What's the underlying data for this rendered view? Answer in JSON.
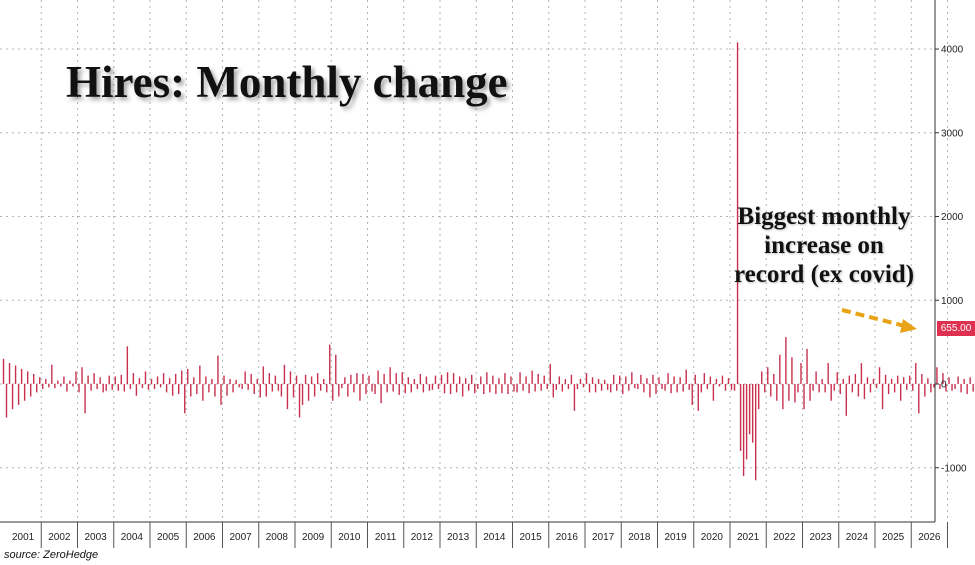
{
  "title": "Hires: Monthly change",
  "annotation": [
    "Biggest monthly",
    "increase on",
    "record (ex covid)"
  ],
  "source": "source: ZeroHedge",
  "last_value_label": "655.00",
  "colors": {
    "bars": "#c8304e",
    "grid": "#b4b4b4",
    "label_bg": "#e03050",
    "arrow": "#e8a317",
    "background": "#ffffff"
  },
  "chart_data": {
    "type": "bar",
    "title": "Hires: Monthly change",
    "xlabel": "",
    "ylabel": "",
    "ylim": [
      -1300,
      4300
    ],
    "yticks": [
      4000,
      3000,
      2000,
      1000,
      0,
      -1000
    ],
    "year_labels": [
      "2001",
      "2002",
      "2003",
      "2004",
      "2005",
      "2006",
      "2007",
      "2008",
      "2009",
      "2010",
      "2011",
      "2012",
      "2013",
      "2014",
      "2015",
      "2016",
      "2017",
      "2018",
      "2019",
      "2020",
      "2021",
      "2022",
      "2023",
      "2024",
      "2025",
      "2026"
    ],
    "grid": true,
    "last_value": 655,
    "series": [
      {
        "frequency": "monthly",
        "start": "2000-12",
        "end": "2026-01",
        "values": [
          300,
          -400,
          250,
          -300,
          220,
          -250,
          180,
          -200,
          150,
          -150,
          120,
          -100,
          80,
          -60,
          60,
          -40,
          230,
          -50,
          40,
          -30,
          90,
          -90,
          40,
          -30,
          150,
          -100,
          200,
          -350,
          100,
          -80,
          130,
          -60,
          80,
          -100,
          -80,
          100,
          -70,
          90,
          -80,
          110,
          -90,
          450,
          -60,
          130,
          -140,
          70,
          -50,
          150,
          -70,
          60,
          -60,
          90,
          -40,
          130,
          -100,
          70,
          -140,
          120,
          -120,
          160,
          -350,
          180,
          -150,
          80,
          -120,
          220,
          -200,
          90,
          -100,
          60,
          -150,
          340,
          -250,
          100,
          -140,
          60,
          -100,
          50,
          -40,
          -60,
          150,
          -70,
          120,
          -120,
          60,
          -160,
          210,
          -150,
          130,
          -90,
          100,
          -80,
          -150,
          230,
          -300,
          150,
          -160,
          100,
          -400,
          -250,
          110,
          -200,
          90,
          -150,
          130,
          -80,
          60,
          -100,
          470,
          -200,
          350,
          -150,
          -50,
          80,
          -150,
          110,
          -100,
          130,
          -200,
          120,
          -120,
          100,
          -90,
          -120,
          160,
          -230,
          120,
          -100,
          200,
          -90,
          130,
          -130,
          140,
          -110,
          80,
          -100,
          60,
          -60,
          120,
          -100,
          90,
          -80,
          -70,
          100,
          -60,
          110,
          -110,
          140,
          -120,
          130,
          -100,
          90,
          -150,
          70,
          -80,
          110,
          -110,
          -60,
          90,
          -120,
          140,
          -100,
          100,
          -120,
          70,
          -110,
          130,
          -120,
          90,
          -90,
          -100,
          140,
          -80,
          90,
          -110,
          160,
          -90,
          120,
          -80,
          100,
          -60,
          240,
          -160,
          -70,
          90,
          -90,
          60,
          -60,
          110,
          -320,
          -60,
          60,
          -40,
          130,
          -100,
          80,
          -100,
          60,
          -80,
          50,
          -70,
          -100,
          110,
          -80,
          100,
          -120,
          90,
          -80,
          140,
          -50,
          -60,
          110,
          -100,
          70,
          -160,
          110,
          -120,
          80,
          -60,
          -80,
          130,
          -110,
          90,
          -100,
          80,
          -90,
          170,
          -70,
          -250,
          110,
          -320,
          -100,
          130,
          -60,
          90,
          -200,
          60,
          -30,
          100,
          -80,
          70,
          -70,
          -80,
          4080,
          -800,
          -1100,
          -900,
          -600,
          -700,
          -1150,
          -300,
          150,
          -100,
          200,
          -150,
          120,
          -200,
          350,
          -300,
          560,
          -200,
          320,
          -220,
          -100,
          250,
          -300,
          420,
          -200,
          -80,
          150,
          -100,
          60,
          -100,
          250,
          -200,
          -80,
          140,
          -120,
          60,
          -380,
          100,
          -100,
          120,
          -150,
          250,
          -180,
          80,
          -100,
          60,
          -50,
          200,
          -300,
          110,
          -120,
          60,
          -100,
          100,
          -200,
          80,
          -70,
          100,
          -80,
          250,
          -350,
          120,
          -150,
          70,
          -100,
          -40,
          200,
          -60,
          130,
          -90,
          80,
          -80,
          -60,
          90,
          -100,
          60,
          -120,
          80,
          -90,
          150,
          -60,
          -60,
          100,
          -80,
          80,
          -60,
          -400,
          655
        ]
      }
    ]
  }
}
